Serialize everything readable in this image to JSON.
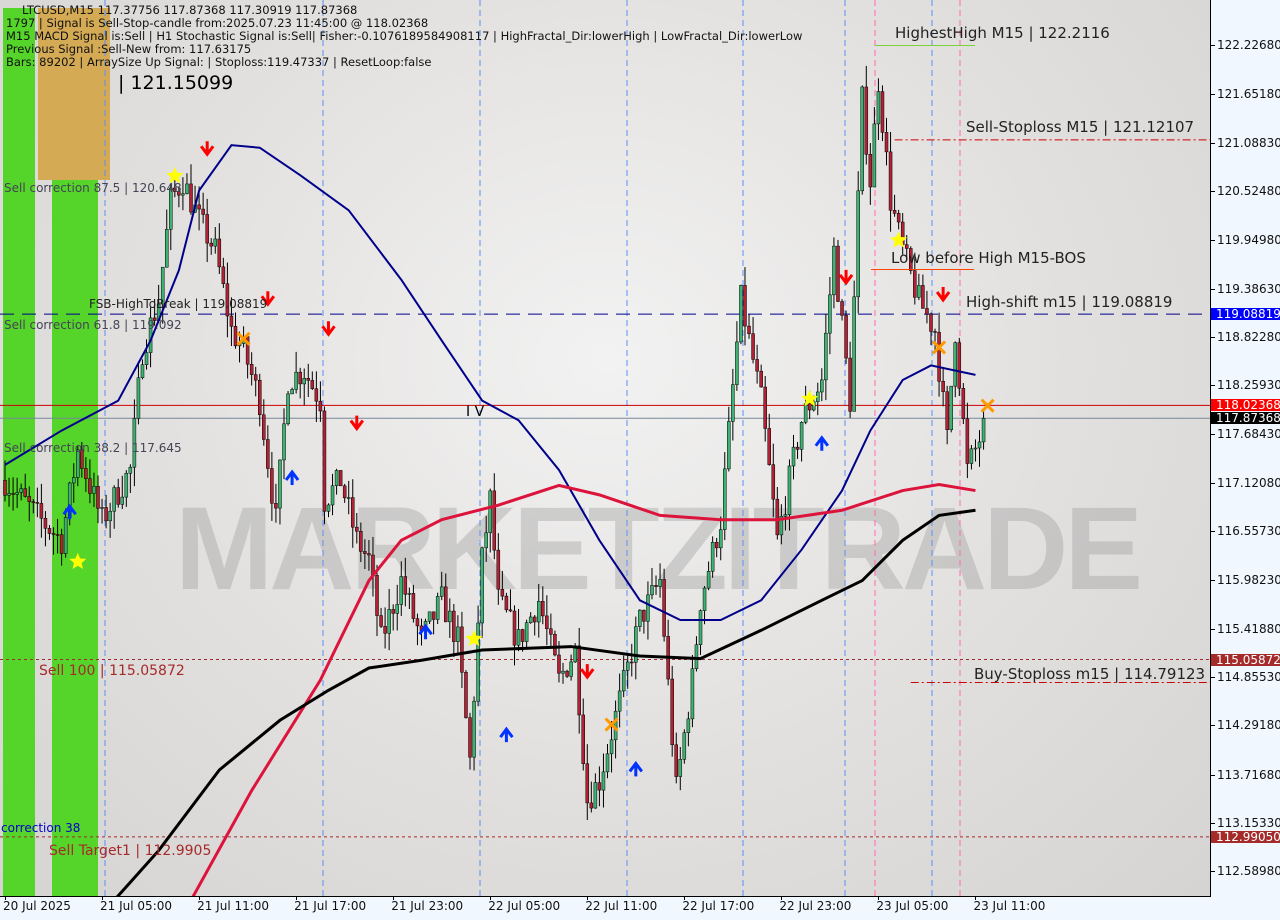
{
  "header": {
    "line1": "LTCUSD,M15  117.37756 117.87368 117.30919 117.87368",
    "line2": "1797 | Signal is Sell-Stop-candle from:2025.07.23 11:45:00 @ 118.02368",
    "line3": "M15 MACD Signal is:Sell | H1 Stochastic Signal is:Sell| Fisher:-0.1076189584908117 | HighFractal_Dir:lowerHigh | LowFractal_Dir:lowerLow",
    "line4": "Previous Signal :Sell-New from: 117.63175",
    "line5": "Bars: 89202 | ArraySize Up Signal: | Stoploss:119.47337 | ResetLoop:false",
    "overlay_big": "| 121.15099"
  },
  "watermark": "MARKETZITRADE",
  "annotations": {
    "highest_high": "HighestHigh    M15 | 122.2116",
    "sell_stoploss": "Sell-Stoploss M15 | 121.12107",
    "low_before_high": "Low before High    M15-BOS",
    "high_shift": "High-shift m15 | 119.08819",
    "buy_stoploss": "Buy-Stoploss m15 | 114.79123",
    "fsb": "FSB-HighToBreak | 119.08819",
    "sell_corr_875": "Sell correction 87.5 | 120.648",
    "sell_corr_618": "Sell correction 61.8 | 119.092",
    "sell_corr_382": "Sell correction 38.2 | 117.645",
    "sell_100": "Sell 100 | 115.05872",
    "sell_target1": "Sell Target1 | 112.9905",
    "correction_38": "correction 38",
    "iv": "I V"
  },
  "colors": {
    "bull": "#3cb371",
    "bear": "#b22234",
    "ma_blue": "#00008b",
    "ma_red": "#dc143c",
    "ma_black": "#000000",
    "zone_green": "#55d42a",
    "zone_tan": "#d4aa55"
  },
  "chart_data": {
    "type": "candlestick",
    "symbol": "LTCUSD",
    "timeframe": "M15",
    "xlim": [
      "2025-07-20 23:00",
      "2025-07-24 01:30"
    ],
    "ylim": [
      112.3,
      122.66
    ],
    "y_ticks": [
      "122.22680",
      "121.65180",
      "121.08830",
      "120.52480",
      "119.94980",
      "119.38630",
      "118.82280",
      "118.25930",
      "117.68430",
      "117.12080",
      "116.55730",
      "115.98230",
      "115.41880",
      "114.85530",
      "114.29180",
      "113.71680",
      "113.15330",
      "112.58980"
    ],
    "x_ticks": [
      {
        "t": "2025-07-20 23:00",
        "label": "20 Jul 2025"
      },
      {
        "t": "2025-07-21 05:00",
        "label": "21 Jul 05:00"
      },
      {
        "t": "2025-07-21 11:00",
        "label": "21 Jul 11:00"
      },
      {
        "t": "2025-07-21 17:00",
        "label": "21 Jul 17:00"
      },
      {
        "t": "2025-07-21 23:00",
        "label": "21 Jul 23:00"
      },
      {
        "t": "2025-07-22 05:00",
        "label": "22 Jul 05:00"
      },
      {
        "t": "2025-07-22 11:00",
        "label": "22 Jul 11:00"
      },
      {
        "t": "2025-07-22 17:00",
        "label": "22 Jul 17:00"
      },
      {
        "t": "2025-07-22 23:00",
        "label": "22 Jul 23:00"
      },
      {
        "t": "2025-07-23 05:00",
        "label": "23 Jul 05:00"
      },
      {
        "t": "2025-07-23 11:00",
        "label": "23 Jul 11:00"
      }
    ],
    "price_tags": [
      {
        "value": "119.08819",
        "color": "#0000ff"
      },
      {
        "value": "118.02368",
        "color": "#ff0000"
      },
      {
        "value": "117.87368",
        "color": "#000000"
      },
      {
        "value": "115.05872",
        "color": "#a52a2a"
      },
      {
        "value": "112.99050",
        "color": "#a52a2a"
      }
    ],
    "close_path": [
      [
        "2025-07-20 23:00",
        117.15
      ],
      [
        "2025-07-21 01:15",
        116.68
      ],
      [
        "2025-07-21 02:30",
        116.45
      ],
      [
        "2025-07-21 03:30",
        117.5
      ],
      [
        "2025-07-21 05:00",
        116.68
      ],
      [
        "2025-07-21 06:45",
        117.27
      ],
      [
        "2025-07-21 07:30",
        118.67
      ],
      [
        "2025-07-21 08:30",
        119.25
      ],
      [
        "2025-07-21 09:15",
        120.42
      ],
      [
        "2025-07-21 10:00",
        120.65
      ],
      [
        "2025-07-21 11:00",
        120.18
      ],
      [
        "2025-07-21 12:00",
        119.83
      ],
      [
        "2025-07-21 13:00",
        118.9
      ],
      [
        "2025-07-21 13:45",
        118.67
      ],
      [
        "2025-07-21 14:45",
        118.08
      ],
      [
        "2025-07-21 15:45",
        116.68
      ],
      [
        "2025-07-21 16:30",
        118.32
      ],
      [
        "2025-07-21 17:30",
        118.43
      ],
      [
        "2025-07-21 18:30",
        118.08
      ],
      [
        "2025-07-21 18:45",
        116.92
      ],
      [
        "2025-07-21 19:45",
        117.15
      ],
      [
        "2025-07-21 20:45",
        116.45
      ],
      [
        "2025-07-21 21:30",
        116.22
      ],
      [
        "2025-07-21 22:15",
        115.28
      ],
      [
        "2025-07-21 23:30",
        115.98
      ],
      [
        "2025-07-22 00:45",
        115.28
      ],
      [
        "2025-07-22 02:00",
        115.75
      ],
      [
        "2025-07-22 03:00",
        115.28
      ],
      [
        "2025-07-22 03:45",
        113.88
      ],
      [
        "2025-07-22 04:30",
        116.22
      ],
      [
        "2025-07-22 05:00",
        116.92
      ],
      [
        "2025-07-22 05:30",
        115.75
      ],
      [
        "2025-07-22 06:45",
        115.28
      ],
      [
        "2025-07-22 08:00",
        115.75
      ],
      [
        "2025-07-22 09:15",
        114.82
      ],
      [
        "2025-07-22 10:15",
        115.17
      ],
      [
        "2025-07-22 11:00",
        113.42
      ],
      [
        "2025-07-22 11:45",
        113.65
      ],
      [
        "2025-07-22 13:00",
        114.58
      ],
      [
        "2025-07-22 14:15",
        115.52
      ],
      [
        "2025-07-22 15:30",
        115.98
      ],
      [
        "2025-07-22 16:30",
        113.54
      ],
      [
        "2025-07-22 17:30",
        114.82
      ],
      [
        "2025-07-22 18:00",
        115.75
      ],
      [
        "2025-07-22 19:15",
        116.68
      ],
      [
        "2025-07-22 20:30",
        119.25
      ],
      [
        "2025-07-22 21:45",
        118.08
      ],
      [
        "2025-07-22 22:45",
        116.45
      ],
      [
        "2025-07-23 00:15",
        117.85
      ],
      [
        "2025-07-23 01:30",
        118.32
      ],
      [
        "2025-07-23 02:15",
        119.83
      ],
      [
        "2025-07-23 03:15",
        118.08
      ],
      [
        "2025-07-23 04:00",
        121.58
      ],
      [
        "2025-07-23 04:30",
        120.65
      ],
      [
        "2025-07-23 05:00",
        121.82
      ],
      [
        "2025-07-23 05:45",
        120.42
      ],
      [
        "2025-07-23 06:30",
        119.83
      ],
      [
        "2025-07-23 07:30",
        119.25
      ],
      [
        "2025-07-23 08:30",
        118.9
      ],
      [
        "2025-07-23 09:15",
        117.62
      ],
      [
        "2025-07-23 09:45",
        118.9
      ],
      [
        "2025-07-23 10:30",
        117.27
      ],
      [
        "2025-07-23 11:45",
        117.87
      ]
    ],
    "series": [
      {
        "color": "#00008b",
        "points": [
          [
            "2025-07-20 23:00",
            117.33
          ],
          [
            "2025-07-21 02:30",
            117.73
          ],
          [
            "2025-07-21 06:00",
            118.08
          ],
          [
            "2025-07-21 08:00",
            118.78
          ],
          [
            "2025-07-21 09:45",
            119.6
          ],
          [
            "2025-07-21 11:00",
            120.53
          ],
          [
            "2025-07-21 13:00",
            121.06
          ],
          [
            "2025-07-21 14:45",
            121.03
          ],
          [
            "2025-07-21 17:15",
            120.71
          ],
          [
            "2025-07-21 20:15",
            120.3
          ],
          [
            "2025-07-21 23:30",
            119.49
          ],
          [
            "2025-07-22 02:00",
            118.78
          ],
          [
            "2025-07-22 04:30",
            118.08
          ],
          [
            "2025-07-22 06:45",
            117.85
          ],
          [
            "2025-07-22 09:15",
            117.27
          ],
          [
            "2025-07-22 11:45",
            116.45
          ],
          [
            "2025-07-22 14:15",
            115.75
          ],
          [
            "2025-07-22 16:45",
            115.52
          ],
          [
            "2025-07-22 19:15",
            115.52
          ],
          [
            "2025-07-22 21:45",
            115.75
          ],
          [
            "2025-07-23 00:15",
            116.34
          ],
          [
            "2025-07-23 02:45",
            117.03
          ],
          [
            "2025-07-23 04:30",
            117.73
          ],
          [
            "2025-07-23 06:30",
            118.32
          ],
          [
            "2025-07-23 08:15",
            118.49
          ],
          [
            "2025-07-23 11:00",
            118.38
          ]
        ]
      },
      {
        "color": "#dc143c",
        "points": [
          [
            "2025-07-21 10:30",
            112.25
          ],
          [
            "2025-07-21 14:15",
            113.53
          ],
          [
            "2025-07-21 18:30",
            114.82
          ],
          [
            "2025-07-21 21:30",
            115.98
          ],
          [
            "2025-07-21 23:30",
            116.45
          ],
          [
            "2025-07-22 02:00",
            116.69
          ],
          [
            "2025-07-22 05:30",
            116.86
          ],
          [
            "2025-07-22 09:15",
            117.09
          ],
          [
            "2025-07-22 11:45",
            116.98
          ],
          [
            "2025-07-22 15:30",
            116.74
          ],
          [
            "2025-07-22 19:15",
            116.69
          ],
          [
            "2025-07-22 22:45",
            116.69
          ],
          [
            "2025-07-23 02:45",
            116.8
          ],
          [
            "2025-07-23 06:30",
            117.03
          ],
          [
            "2025-07-23 08:45",
            117.1
          ],
          [
            "2025-07-23 11:00",
            117.03
          ]
        ]
      },
      {
        "color": "#000000",
        "points": [
          [
            "2025-07-21 05:45",
            112.25
          ],
          [
            "2025-07-21 08:30",
            112.83
          ],
          [
            "2025-07-21 12:15",
            113.77
          ],
          [
            "2025-07-21 16:00",
            114.35
          ],
          [
            "2025-07-21 19:00",
            114.7
          ],
          [
            "2025-07-21 21:30",
            114.96
          ],
          [
            "2025-07-22 00:45",
            115.05
          ],
          [
            "2025-07-22 04:30",
            115.17
          ],
          [
            "2025-07-22 10:00",
            115.21
          ],
          [
            "2025-07-22 14:15",
            115.1
          ],
          [
            "2025-07-22 18:00",
            115.07
          ],
          [
            "2025-07-22 21:45",
            115.4
          ],
          [
            "2025-07-23 01:30",
            115.75
          ],
          [
            "2025-07-23 04:00",
            115.98
          ],
          [
            "2025-07-23 06:30",
            116.45
          ],
          [
            "2025-07-23 08:45",
            116.74
          ],
          [
            "2025-07-23 11:00",
            116.8
          ]
        ]
      }
    ],
    "levels": [
      {
        "value": 119.08819,
        "color": "#00008b",
        "style": "dashed"
      },
      {
        "value": 118.02368,
        "color": "#cc0000",
        "style": "solid"
      },
      {
        "value": 117.87368,
        "color": "#778899",
        "style": "solid"
      },
      {
        "value": 115.05872,
        "color": "#a52a2a",
        "style": "dotted"
      },
      {
        "value": 112.9905,
        "color": "#a52a2a",
        "style": "dotted"
      },
      {
        "value": 121.12107,
        "color": "#cc0000",
        "style": "dashdot",
        "from": "2025-07-23 06:00"
      },
      {
        "value": 114.79123,
        "color": "#cc0000",
        "style": "dashdot",
        "from": "2025-07-23 07:00"
      }
    ],
    "markers": [
      {
        "t": "2025-07-21 11:30",
        "p": 121.0,
        "type": "sell-arrow"
      },
      {
        "t": "2025-07-21 15:15",
        "p": 119.25,
        "type": "sell-arrow"
      },
      {
        "t": "2025-07-21 19:00",
        "p": 118.9,
        "type": "sell-arrow"
      },
      {
        "t": "2025-07-21 20:45",
        "p": 117.8,
        "type": "sell-arrow"
      },
      {
        "t": "2025-07-22 11:00",
        "p": 114.9,
        "type": "sell-arrow"
      },
      {
        "t": "2025-07-23 03:00",
        "p": 119.5,
        "type": "sell-arrow"
      },
      {
        "t": "2025-07-23 09:00",
        "p": 119.3,
        "type": "sell-arrow"
      },
      {
        "t": "2025-07-21 03:00",
        "p": 116.8,
        "type": "buy-arrow"
      },
      {
        "t": "2025-07-21 16:45",
        "p": 117.2,
        "type": "buy-arrow"
      },
      {
        "t": "2025-07-22 01:00",
        "p": 115.4,
        "type": "buy-arrow"
      },
      {
        "t": "2025-07-22 06:00",
        "p": 114.2,
        "type": "buy-arrow"
      },
      {
        "t": "2025-07-22 14:00",
        "p": 113.8,
        "type": "buy-arrow"
      },
      {
        "t": "2025-07-23 01:30",
        "p": 117.6,
        "type": "buy-arrow"
      },
      {
        "t": "2025-07-21 09:30",
        "p": 120.7,
        "type": "star"
      },
      {
        "t": "2025-07-21 03:30",
        "p": 116.2,
        "type": "star"
      },
      {
        "t": "2025-07-22 04:00",
        "p": 115.3,
        "type": "star"
      },
      {
        "t": "2025-07-23 00:45",
        "p": 118.1,
        "type": "star"
      },
      {
        "t": "2025-07-23 06:15",
        "p": 119.95,
        "type": "star"
      },
      {
        "t": "2025-07-21 13:45",
        "p": 118.8,
        "type": "cross"
      },
      {
        "t": "2025-07-22 12:30",
        "p": 114.3,
        "type": "cross"
      },
      {
        "t": "2025-07-23 08:45",
        "p": 118.7,
        "type": "cross"
      },
      {
        "t": "2025-07-23 11:45",
        "p": 118.02,
        "type": "cross"
      }
    ]
  }
}
